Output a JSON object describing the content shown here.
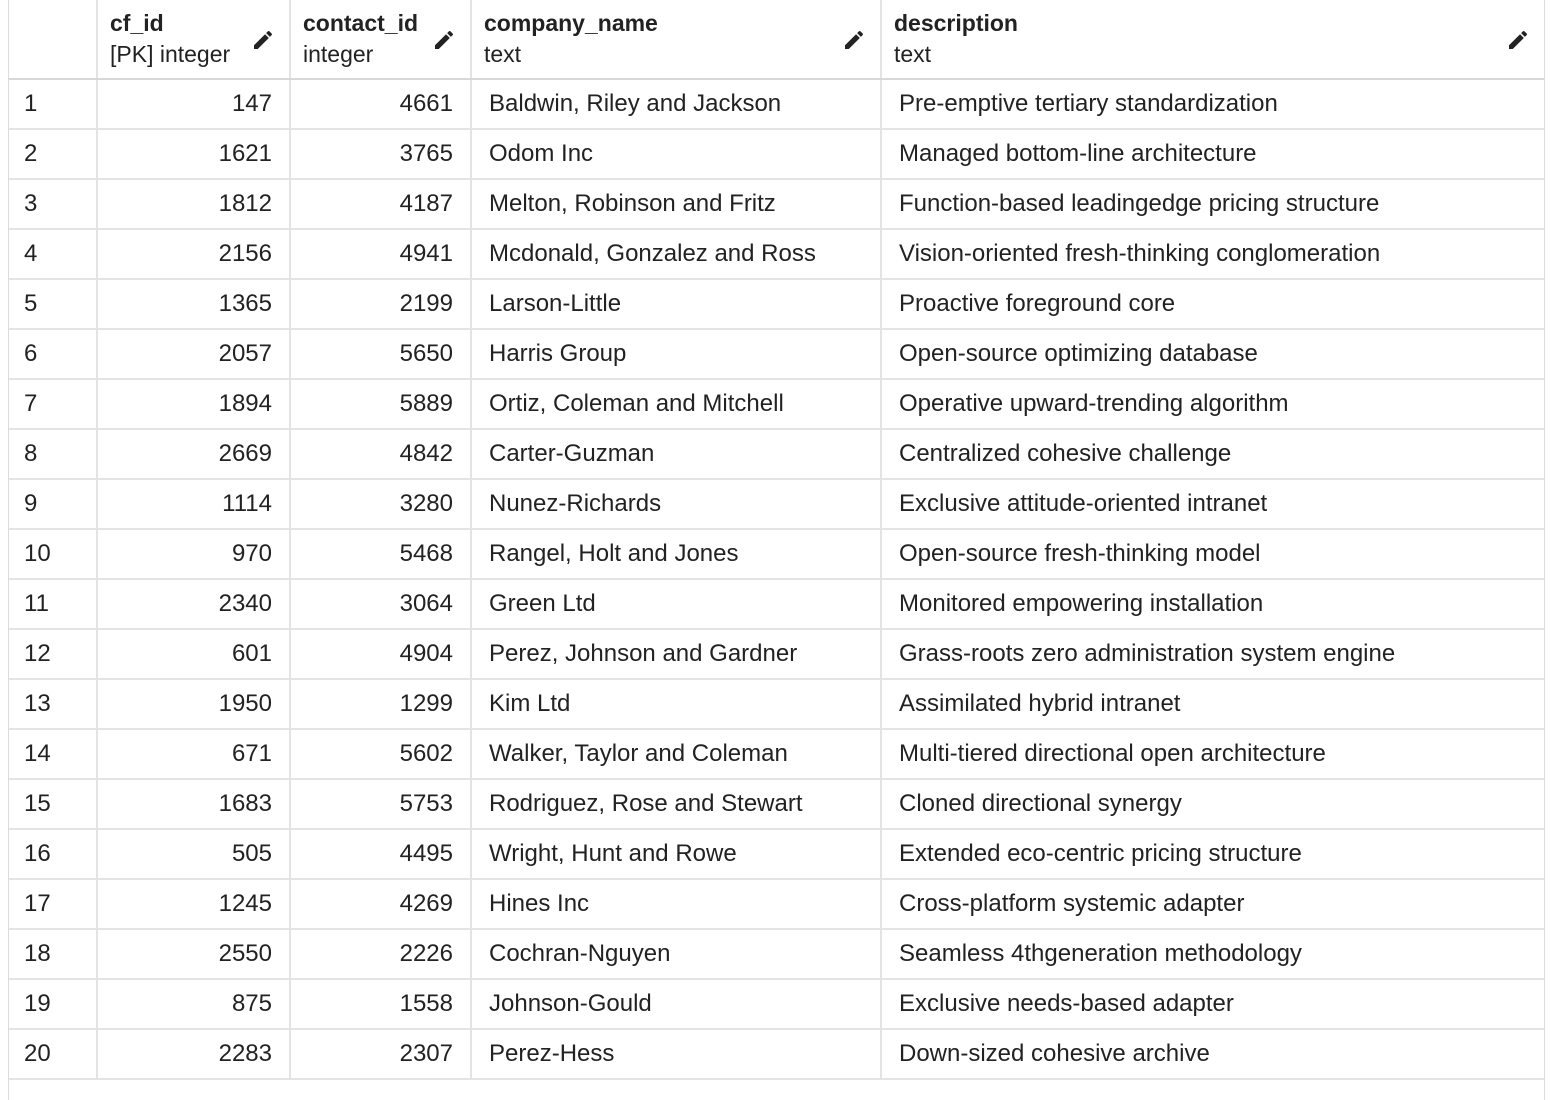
{
  "columns": [
    {
      "name": "",
      "type": ""
    },
    {
      "name": "cf_id",
      "type": "[PK] integer"
    },
    {
      "name": "contact_id",
      "type": "integer"
    },
    {
      "name": "company_name",
      "type": "text"
    },
    {
      "name": "description",
      "type": "text"
    }
  ],
  "rows": [
    {
      "n": "1",
      "cf_id": "147",
      "contact_id": "4661",
      "company_name": "Baldwin, Riley and Jackson",
      "description": "Pre-emptive tertiary standardization"
    },
    {
      "n": "2",
      "cf_id": "1621",
      "contact_id": "3765",
      "company_name": "Odom Inc",
      "description": "Managed bottom-line architecture"
    },
    {
      "n": "3",
      "cf_id": "1812",
      "contact_id": "4187",
      "company_name": "Melton, Robinson and Fritz",
      "description": "Function-based leadingedge pricing structure"
    },
    {
      "n": "4",
      "cf_id": "2156",
      "contact_id": "4941",
      "company_name": "Mcdonald, Gonzalez and Ross",
      "description": "Vision-oriented fresh-thinking conglomeration"
    },
    {
      "n": "5",
      "cf_id": "1365",
      "contact_id": "2199",
      "company_name": "Larson-Little",
      "description": "Proactive foreground core"
    },
    {
      "n": "6",
      "cf_id": "2057",
      "contact_id": "5650",
      "company_name": "Harris Group",
      "description": "Open-source optimizing database"
    },
    {
      "n": "7",
      "cf_id": "1894",
      "contact_id": "5889",
      "company_name": "Ortiz, Coleman and Mitchell",
      "description": "Operative upward-trending algorithm"
    },
    {
      "n": "8",
      "cf_id": "2669",
      "contact_id": "4842",
      "company_name": "Carter-Guzman",
      "description": "Centralized cohesive challenge"
    },
    {
      "n": "9",
      "cf_id": "1114",
      "contact_id": "3280",
      "company_name": "Nunez-Richards",
      "description": "Exclusive attitude-oriented intranet"
    },
    {
      "n": "10",
      "cf_id": "970",
      "contact_id": "5468",
      "company_name": "Rangel, Holt and Jones",
      "description": "Open-source fresh-thinking model"
    },
    {
      "n": "11",
      "cf_id": "2340",
      "contact_id": "3064",
      "company_name": "Green Ltd",
      "description": "Monitored empowering installation"
    },
    {
      "n": "12",
      "cf_id": "601",
      "contact_id": "4904",
      "company_name": "Perez, Johnson and Gardner",
      "description": "Grass-roots zero administration system engine"
    },
    {
      "n": "13",
      "cf_id": "1950",
      "contact_id": "1299",
      "company_name": "Kim Ltd",
      "description": "Assimilated hybrid intranet"
    },
    {
      "n": "14",
      "cf_id": "671",
      "contact_id": "5602",
      "company_name": "Walker, Taylor and Coleman",
      "description": "Multi-tiered directional open architecture"
    },
    {
      "n": "15",
      "cf_id": "1683",
      "contact_id": "5753",
      "company_name": "Rodriguez, Rose and Stewart",
      "description": "Cloned directional synergy"
    },
    {
      "n": "16",
      "cf_id": "505",
      "contact_id": "4495",
      "company_name": "Wright, Hunt and Rowe",
      "description": "Extended eco-centric pricing structure"
    },
    {
      "n": "17",
      "cf_id": "1245",
      "contact_id": "4269",
      "company_name": "Hines Inc",
      "description": "Cross-platform systemic adapter"
    },
    {
      "n": "18",
      "cf_id": "2550",
      "contact_id": "2226",
      "company_name": "Cochran-Nguyen",
      "description": "Seamless 4thgeneration methodology"
    },
    {
      "n": "19",
      "cf_id": "875",
      "contact_id": "1558",
      "company_name": "Johnson-Gould",
      "description": "Exclusive needs-based adapter"
    },
    {
      "n": "20",
      "cf_id": "2283",
      "contact_id": "2307",
      "company_name": "Perez-Hess",
      "description": "Down-sized cohesive archive"
    }
  ]
}
